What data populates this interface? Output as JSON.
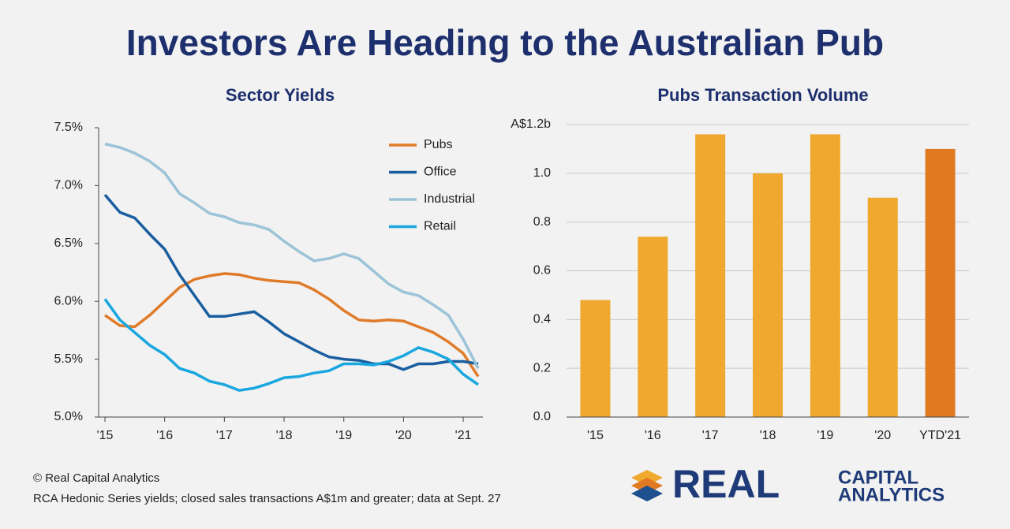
{
  "title": "Investors Are Heading to the Australian Pub",
  "footer": {
    "copyright": "© Real Capital Analytics",
    "note": "RCA Hedonic Series yields; closed sales transactions A$1m and greater; data at Sept. 27"
  },
  "logo": {
    "word": "REAL",
    "line1": "CAPITAL",
    "line2": "ANALYTICS"
  },
  "chart_data": [
    {
      "type": "line",
      "title": "Sector Yields",
      "categories": [
        "'15",
        null,
        null,
        null,
        "'16",
        null,
        null,
        null,
        "'17",
        null,
        null,
        null,
        "'18",
        null,
        null,
        null,
        "'19",
        null,
        null,
        null,
        "'20",
        null,
        null,
        null,
        "'21",
        null
      ],
      "ylim": [
        5.0,
        7.5
      ],
      "yticks": [
        {
          "value": 5.0,
          "label": "5.0%"
        },
        {
          "value": 5.5,
          "label": "5.5%"
        },
        {
          "value": 6.0,
          "label": "6.0%"
        },
        {
          "value": 6.5,
          "label": "6.5%"
        },
        {
          "value": 7.0,
          "label": "7.0%"
        },
        {
          "value": 7.5,
          "label": "7.5%"
        }
      ],
      "legend": "top-right",
      "grid": false,
      "series": [
        {
          "name": "Pubs",
          "color": "#e07b2a",
          "values": [
            5.88,
            5.79,
            5.78,
            5.88,
            6.0,
            6.12,
            6.19,
            6.22,
            6.24,
            6.23,
            6.2,
            6.18,
            6.17,
            6.16,
            6.1,
            6.02,
            5.92,
            5.84,
            5.83,
            5.84,
            5.83,
            5.78,
            5.73,
            5.65,
            5.55,
            5.35
          ]
        },
        {
          "name": "Office",
          "color": "#1a5ea0",
          "values": [
            6.92,
            6.77,
            6.72,
            6.58,
            6.45,
            6.23,
            6.05,
            5.87,
            5.87,
            5.89,
            5.91,
            5.82,
            5.72,
            5.65,
            5.58,
            5.52,
            5.5,
            5.49,
            5.46,
            5.46,
            5.41,
            5.46,
            5.46,
            5.48,
            5.48,
            5.46
          ]
        },
        {
          "name": "Industrial",
          "color": "#9cc3d8",
          "values": [
            7.36,
            7.33,
            7.28,
            7.21,
            7.11,
            6.93,
            6.85,
            6.76,
            6.73,
            6.68,
            6.66,
            6.62,
            6.52,
            6.43,
            6.35,
            6.37,
            6.41,
            6.37,
            6.26,
            6.15,
            6.08,
            6.05,
            5.97,
            5.88,
            5.67,
            5.42
          ]
        },
        {
          "name": "Retail",
          "color": "#1aa7e0",
          "values": [
            6.02,
            5.84,
            5.73,
            5.62,
            5.54,
            5.42,
            5.38,
            5.31,
            5.28,
            5.23,
            5.25,
            5.29,
            5.34,
            5.35,
            5.38,
            5.4,
            5.46,
            5.46,
            5.45,
            5.48,
            5.53,
            5.6,
            5.56,
            5.5,
            5.37,
            5.28
          ]
        }
      ]
    },
    {
      "type": "bar",
      "title": "Pubs Transaction Volume",
      "categories": [
        "'15",
        "'16",
        "'17",
        "'18",
        "'19",
        "'20",
        "YTD'21"
      ],
      "values": [
        0.48,
        0.74,
        1.16,
        1.0,
        1.16,
        0.9,
        1.1
      ],
      "colors": [
        "#f0a92e",
        "#f0a92e",
        "#f0a92e",
        "#f0a92e",
        "#f0a92e",
        "#f0a92e",
        "#e07a22"
      ],
      "ylim": [
        0,
        1.2
      ],
      "yticks": [
        {
          "value": 0,
          "label": "0.0"
        },
        0.2,
        0.4,
        0.6,
        0.8,
        {
          "value": 1.0,
          "label": "1.0"
        },
        {
          "value": 1.2,
          "label": "A$1.2b"
        }
      ],
      "grid": true
    }
  ]
}
